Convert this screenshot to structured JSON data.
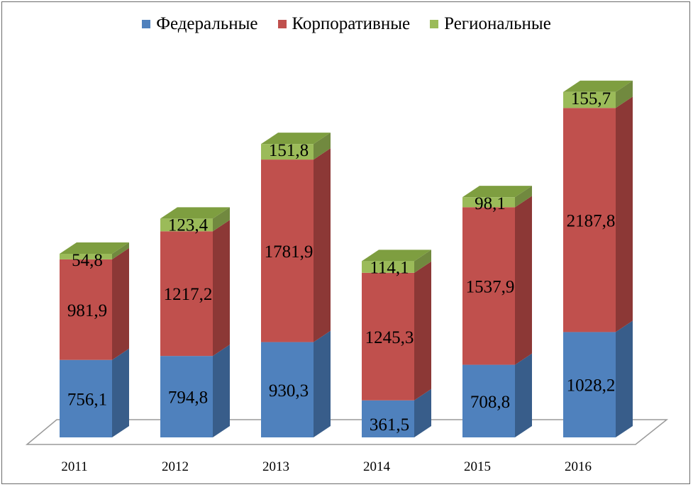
{
  "chart_data": {
    "type": "bar",
    "stacked": true,
    "three_d": true,
    "categories": [
      "2011",
      "2012",
      "2013",
      "2014",
      "2015",
      "2016"
    ],
    "series": [
      {
        "name": "Федеральные",
        "color": "#4F81BD",
        "side": "#385D8A",
        "top": "#6E97CB",
        "values": [
          756.1,
          794.8,
          930.3,
          361.5,
          708.8,
          1028.2
        ],
        "labels": [
          "756,1",
          "794,8",
          "930,3",
          "361,5",
          "708,8",
          "1028,2"
        ]
      },
      {
        "name": "Корпоративные",
        "color": "#C0504D",
        "side": "#8C3836",
        "top": "#D07673",
        "values": [
          981.9,
          1217.2,
          1781.9,
          1245.3,
          1537.9,
          2187.8
        ],
        "labels": [
          "981,9",
          "1217,2",
          "1781,9",
          "1245,3",
          "1537,9",
          "2187,8"
        ]
      },
      {
        "name": "Региональные",
        "color": "#9BBB59",
        "side": "#71893F",
        "top": "#7E9E40",
        "values": [
          54.8,
          123.4,
          151.8,
          114.1,
          98.1,
          155.7
        ],
        "labels": [
          "54,8",
          "123,4",
          "151,8",
          "114,1",
          "98,1",
          "155,7"
        ]
      }
    ],
    "legend_position": "top",
    "grid": false
  }
}
